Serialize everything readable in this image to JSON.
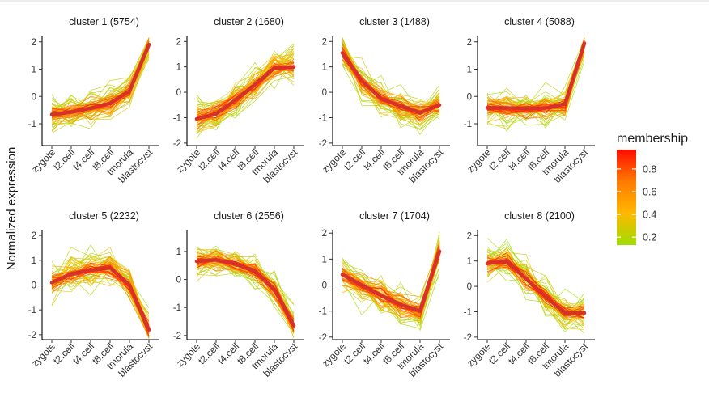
{
  "figure": {
    "ylabel": "Normalized expression",
    "legend": {
      "title": "membership",
      "ticks": [
        "0.8",
        "0.6",
        "0.4",
        "0.2"
      ],
      "tick_values": [
        0.8,
        0.6,
        0.4,
        0.2
      ],
      "range": [
        0.13,
        0.97
      ],
      "colors": [
        "#ff0d00",
        "#ff7a00",
        "#ffb800",
        "#9ede00"
      ]
    }
  },
  "chart_data": [
    {
      "type": "line",
      "title": "cluster 1 (5754)",
      "categories": [
        "zygote",
        "t2.cell",
        "t4.cell",
        "t8.cell",
        "tmorula",
        "blastocyst"
      ],
      "yticks": [
        2,
        1,
        0,
        -1
      ],
      "ylim": [
        -1.8,
        2.2
      ],
      "centroid": [
        -0.66,
        -0.57,
        -0.43,
        -0.25,
        0.2,
        1.9
      ],
      "spread": 0.45
    },
    {
      "type": "line",
      "title": "cluster 2 (1680)",
      "categories": [
        "zygote",
        "t2.cell",
        "t4.cell",
        "t8.cell",
        "tmorula",
        "blastocyst"
      ],
      "yticks": [
        2,
        1,
        0,
        -1,
        -2
      ],
      "ylim": [
        -2.1,
        2.2
      ],
      "centroid": [
        -1.05,
        -0.85,
        -0.3,
        0.3,
        0.95,
        1.0
      ],
      "spread": 0.55
    },
    {
      "type": "line",
      "title": "cluster 3 (1488)",
      "categories": [
        "zygote",
        "t2.cell",
        "t4.cell",
        "t8.cell",
        "tmorula",
        "blastocyst"
      ],
      "yticks": [
        2,
        1,
        0,
        -1,
        -2
      ],
      "ylim": [
        -2.1,
        2.2
      ],
      "centroid": [
        1.55,
        0.45,
        -0.25,
        -0.55,
        -0.8,
        -0.5
      ],
      "spread": 0.5
    },
    {
      "type": "line",
      "title": "cluster 4 (5088)",
      "categories": [
        "zygote",
        "t2.cell",
        "t4.cell",
        "t8.cell",
        "tmorula",
        "blastocyst"
      ],
      "yticks": [
        2,
        1,
        0,
        -1
      ],
      "ylim": [
        -1.8,
        2.2
      ],
      "centroid": [
        -0.42,
        -0.42,
        -0.45,
        -0.42,
        -0.28,
        1.95
      ],
      "spread": 0.45
    },
    {
      "type": "line",
      "title": "cluster 5 (2232)",
      "categories": [
        "zygote",
        "t2.cell",
        "t4.cell",
        "t8.cell",
        "tmorula",
        "blastocyst"
      ],
      "yticks": [
        2,
        1,
        0,
        -1,
        -2
      ],
      "ylim": [
        -2.2,
        2.2
      ],
      "centroid": [
        0.1,
        0.45,
        0.6,
        0.7,
        0.0,
        -1.8
      ],
      "spread": 0.55
    },
    {
      "type": "line",
      "title": "cluster 6 (2556)",
      "categories": [
        "zygote",
        "t2.cell",
        "t4.cell",
        "t8.cell",
        "tmorula",
        "blastocyst"
      ],
      "yticks": [
        1,
        0,
        -1,
        -2
      ],
      "ylim": [
        -2.15,
        1.75
      ],
      "centroid": [
        0.65,
        0.7,
        0.55,
        0.3,
        -0.35,
        -1.65
      ],
      "spread": 0.45
    },
    {
      "type": "line",
      "title": "cluster 7 (1704)",
      "categories": [
        "zygote",
        "t2.cell",
        "t4.cell",
        "t8.cell",
        "tmorula",
        "blastocyst"
      ],
      "yticks": [
        2,
        1,
        0,
        -1,
        -2
      ],
      "ylim": [
        -2.1,
        2.1
      ],
      "centroid": [
        0.4,
        0.0,
        -0.4,
        -0.75,
        -1.0,
        1.3
      ],
      "spread": 0.55
    },
    {
      "type": "line",
      "title": "cluster 8 (2100)",
      "categories": [
        "zygote",
        "t2.cell",
        "t4.cell",
        "t8.cell",
        "tmorula",
        "blastocyst"
      ],
      "yticks": [
        2,
        1,
        0,
        -1,
        -2
      ],
      "ylim": [
        -2.1,
        2.2
      ],
      "centroid": [
        0.9,
        1.0,
        0.3,
        -0.4,
        -1.05,
        -1.05
      ],
      "spread": 0.5
    }
  ]
}
